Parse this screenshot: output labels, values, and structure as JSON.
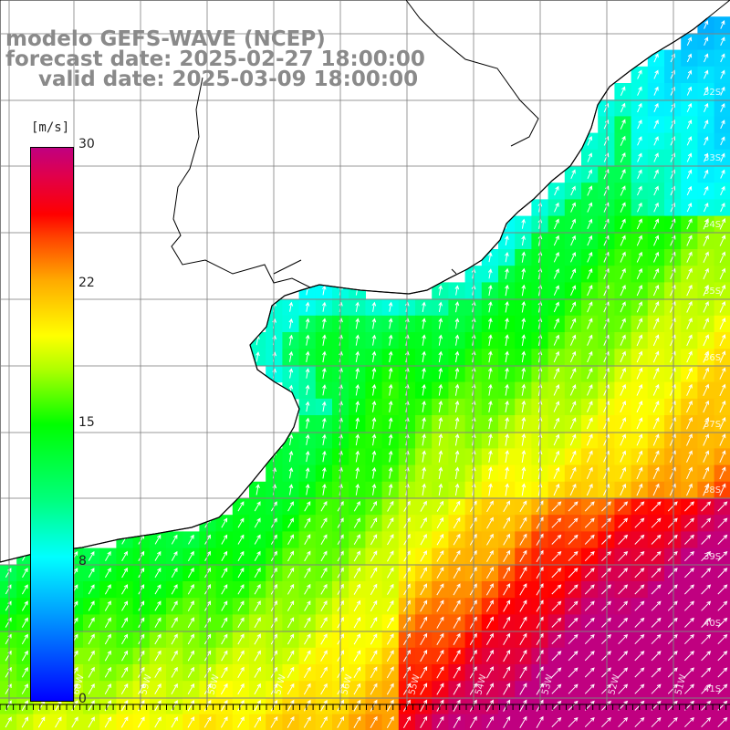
{
  "header": {
    "line1": "modelo GEFS-WAVE (NCEP)",
    "line2": "forecast date: 2025-02-27 18:00:00",
    "line3": "valid date: 2025-03-09 18:00:00"
  },
  "colorbar": {
    "unit_label": "[m/s]",
    "ticks": [
      "30",
      "22",
      "15",
      "8",
      "0"
    ],
    "min": 0,
    "max": 30
  },
  "map": {
    "lon_labels": [
      "60W",
      "59W",
      "58W",
      "57W",
      "56W",
      "55W",
      "54W",
      "53W",
      "52W",
      "51W"
    ],
    "lat_labels": [
      "32S",
      "33S",
      "34S",
      "35S",
      "36S",
      "37S",
      "38S",
      "39S",
      "40S",
      "41S"
    ],
    "lon_range": [
      -61,
      -50
    ],
    "lat_range": [
      -41.5,
      -30.5
    ],
    "arrow_color": "#ffffff",
    "land_color": "#ffffff",
    "coast_color": "#000000",
    "grid_color": "#808080"
  }
}
